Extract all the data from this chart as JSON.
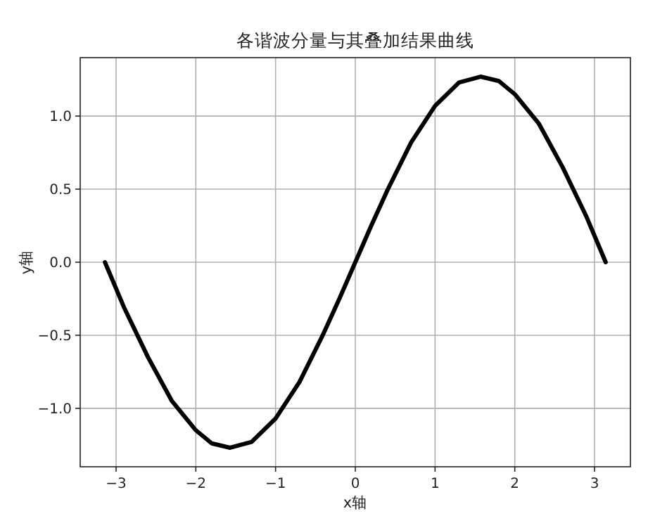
{
  "chart_data": {
    "type": "line",
    "title": "各谐波分量与其叠加结果曲线",
    "xlabel": "x轴",
    "ylabel": "y轴",
    "x": [
      -3.14,
      -2.9,
      -2.6,
      -2.3,
      -2.0,
      -1.8,
      -1.57,
      -1.3,
      -1.0,
      -0.7,
      -0.4,
      -0.2,
      0,
      0.2,
      0.4,
      0.7,
      1.0,
      1.3,
      1.57,
      1.8,
      2.0,
      2.3,
      2.6,
      2.9,
      3.14
    ],
    "series": [
      {
        "color": "#000000",
        "values": [
          0,
          -0.31,
          -0.65,
          -0.95,
          -1.15,
          -1.24,
          -1.27,
          -1.23,
          -1.07,
          -0.82,
          -0.49,
          -0.25,
          0,
          0.25,
          0.49,
          0.82,
          1.07,
          1.23,
          1.27,
          1.24,
          1.15,
          0.95,
          0.65,
          0.31,
          0
        ]
      }
    ],
    "xlim": [
      -3.45,
      3.45
    ],
    "ylim": [
      -1.4,
      1.4
    ],
    "xticks": [
      {
        "value": -3,
        "label": "−3"
      },
      {
        "value": -2,
        "label": "−2"
      },
      {
        "value": -1,
        "label": "−1"
      },
      0,
      1,
      2,
      3
    ],
    "yticks": [
      {
        "value": -1,
        "label": "−1.0"
      },
      {
        "value": -0.5,
        "label": "−0.5"
      },
      {
        "value": 0,
        "label": "0.0"
      },
      {
        "value": 0.5,
        "label": "0.5"
      },
      {
        "value": 1,
        "label": "1.0"
      }
    ],
    "grid": true
  }
}
